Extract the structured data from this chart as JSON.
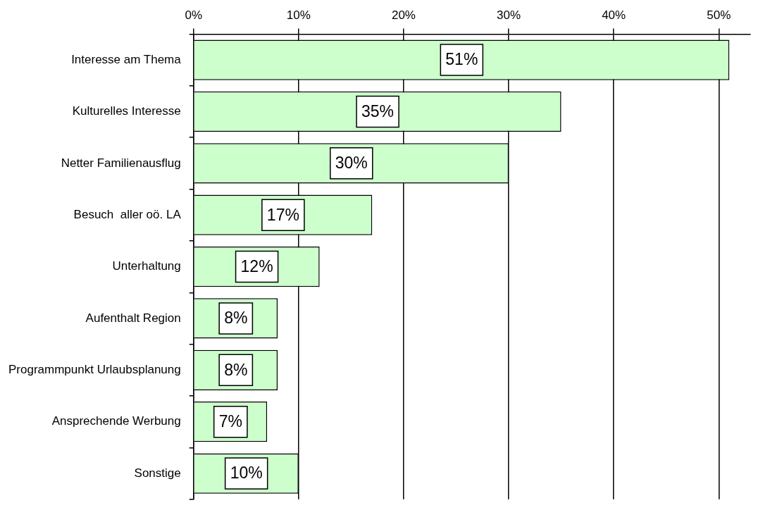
{
  "chart_data": {
    "type": "bar",
    "orientation": "horizontal",
    "categories": [
      "Interesse am Thema",
      "Kulturelles Interesse",
      "Netter Familienausflug",
      "Besuch  aller oö. LA",
      "Unterhaltung",
      "Aufenthalt Region",
      "Programmpunkt Urlaubsplanung",
      "Ansprechende Werbung",
      "Sonstige"
    ],
    "values": [
      51,
      35,
      30,
      17,
      12,
      8,
      8,
      7,
      10
    ],
    "value_labels": [
      "51%",
      "35%",
      "30%",
      "17%",
      "12%",
      "8%",
      "8%",
      "7%",
      "10%"
    ],
    "color": "#ccffcc",
    "xlim": [
      0,
      53
    ],
    "xticks": [
      {
        "value": 0,
        "label": "0%"
      },
      {
        "value": 10,
        "label": "10%"
      },
      {
        "value": 20,
        "label": "20%"
      },
      {
        "value": 30,
        "label": "30%"
      },
      {
        "value": 40,
        "label": "40%"
      },
      {
        "value": 50,
        "label": "50%"
      }
    ],
    "grid": "x",
    "legend": false
  }
}
